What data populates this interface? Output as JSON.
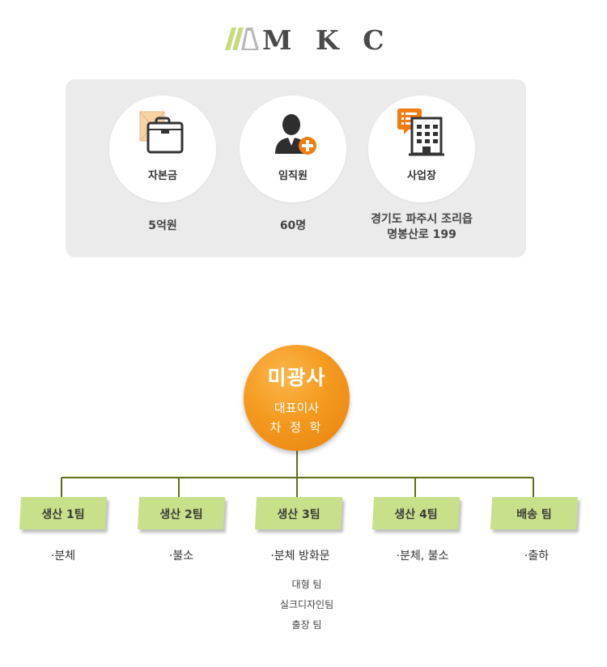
{
  "logo": {
    "text": "M K C",
    "stripe_colors": [
      "#c5db7d",
      "#b8b8b8",
      "#ffffff"
    ]
  },
  "info": [
    {
      "label": "자본금",
      "value_lines": [
        "5억원"
      ],
      "icon": "briefcase-icon"
    },
    {
      "label": "임직원",
      "value_lines": [
        "60명"
      ],
      "icon": "person-add-icon"
    },
    {
      "label": "사업장",
      "value_lines": [
        "경기도 파주시 조리읍",
        "명봉산로 199"
      ],
      "icon": "building-icon"
    }
  ],
  "ceo": {
    "company": "미광사",
    "title": "대표이사",
    "name": "차 정 학",
    "color": "#f49a1f"
  },
  "teams": [
    {
      "label": "생산 1팀",
      "desc": "·분체"
    },
    {
      "label": "생산 2팀",
      "desc": "·불소"
    },
    {
      "label": "생산 3팀",
      "desc": "·분체 방화문",
      "subteams": [
        "대형 팀",
        "실크디자인팀",
        "출장 팀"
      ]
    },
    {
      "label": "생산 4팀",
      "desc": "·분체, 불소"
    },
    {
      "label": "배송 팀",
      "desc": "·출하"
    }
  ],
  "colors": {
    "team_box": "#c8e08a",
    "connector": "#5c6e1a",
    "panel": "#ebebeb",
    "accent_orange": "#f07c12"
  }
}
